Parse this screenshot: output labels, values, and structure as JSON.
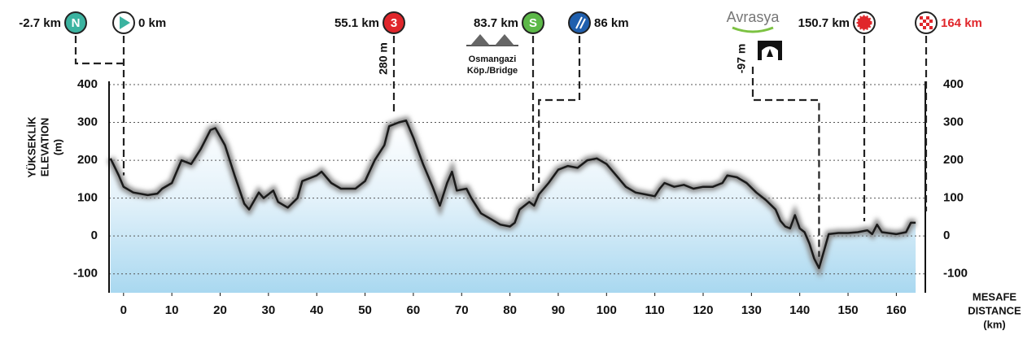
{
  "chart_data": {
    "type": "area",
    "y_label": [
      "YÜKSEKLİK",
      "ELEVATION",
      "(m)"
    ],
    "x_label": [
      "MESAFE",
      "DISTANCE",
      "(km)"
    ],
    "x": [
      -2.7,
      -1,
      0,
      2,
      5,
      7,
      8,
      10,
      12,
      14,
      16,
      18,
      19,
      21,
      23,
      25,
      26,
      28,
      29,
      31,
      32,
      34,
      36,
      37,
      40,
      41,
      43,
      45,
      48,
      50,
      52,
      54,
      55,
      57,
      58.5,
      60,
      62,
      64,
      65.5,
      67,
      68,
      69,
      71,
      72,
      74,
      76,
      78,
      80,
      81,
      82,
      84,
      85,
      86,
      88,
      90,
      92,
      94,
      96,
      98,
      100,
      102,
      104,
      106,
      108,
      110,
      111,
      112,
      114,
      116,
      118,
      120,
      122,
      124,
      125,
      127,
      129,
      131,
      133,
      135,
      136,
      137,
      138,
      139,
      140,
      141,
      142,
      143,
      144,
      145,
      146,
      148,
      150,
      152,
      154,
      155,
      156,
      157,
      160,
      162,
      163,
      164
    ],
    "values": [
      205,
      160,
      130,
      115,
      108,
      112,
      125,
      140,
      200,
      190,
      230,
      280,
      285,
      240,
      160,
      85,
      70,
      115,
      100,
      120,
      90,
      75,
      100,
      145,
      160,
      170,
      140,
      125,
      125,
      145,
      200,
      240,
      290,
      300,
      305,
      260,
      190,
      130,
      80,
      140,
      170,
      120,
      125,
      100,
      60,
      45,
      30,
      25,
      35,
      70,
      90,
      80,
      110,
      140,
      175,
      185,
      180,
      200,
      205,
      190,
      160,
      130,
      115,
      110,
      105,
      125,
      140,
      130,
      135,
      125,
      130,
      130,
      140,
      160,
      155,
      140,
      115,
      95,
      70,
      40,
      25,
      20,
      55,
      20,
      10,
      -20,
      -60,
      -85,
      -40,
      5,
      8,
      8,
      10,
      15,
      5,
      30,
      10,
      5,
      10,
      35,
      35
    ],
    "color": "#1a1a1a",
    "xlim": [
      -3,
      166
    ],
    "ylim": [
      -150,
      400
    ],
    "xticks": [
      0,
      10,
      20,
      30,
      40,
      50,
      60,
      70,
      80,
      90,
      100,
      110,
      120,
      130,
      140,
      150,
      160
    ],
    "yticks": [
      -100,
      0,
      100,
      200,
      300,
      400
    ],
    "grid": true,
    "markers": [
      {
        "x": -2.7,
        "label": "-2.7 km",
        "icon": "N",
        "color": "#3bb3a0"
      },
      {
        "x": 0,
        "label": "0 km",
        "color": "#3bb3a0"
      },
      {
        "x": 55.1,
        "label": "55.1 km",
        "icon": "3",
        "color": "#e0262b"
      },
      {
        "x": 83.7,
        "label": "83.7 km",
        "icon": "S",
        "color": "#5cb848"
      },
      {
        "x": 86,
        "label": "86 km",
        "color": "#1f5fae"
      },
      {
        "x": 150.7,
        "label": "150.7 km",
        "color": "#e0262b"
      },
      {
        "x": 164,
        "label": "164 km",
        "color": "#e0262b"
      }
    ],
    "annotations": {
      "climb": "280 m",
      "tunnel": "-97 m",
      "bridge": [
        "Osmangazi",
        "Köp./Bridge"
      ],
      "logo": "Avrasya"
    }
  }
}
